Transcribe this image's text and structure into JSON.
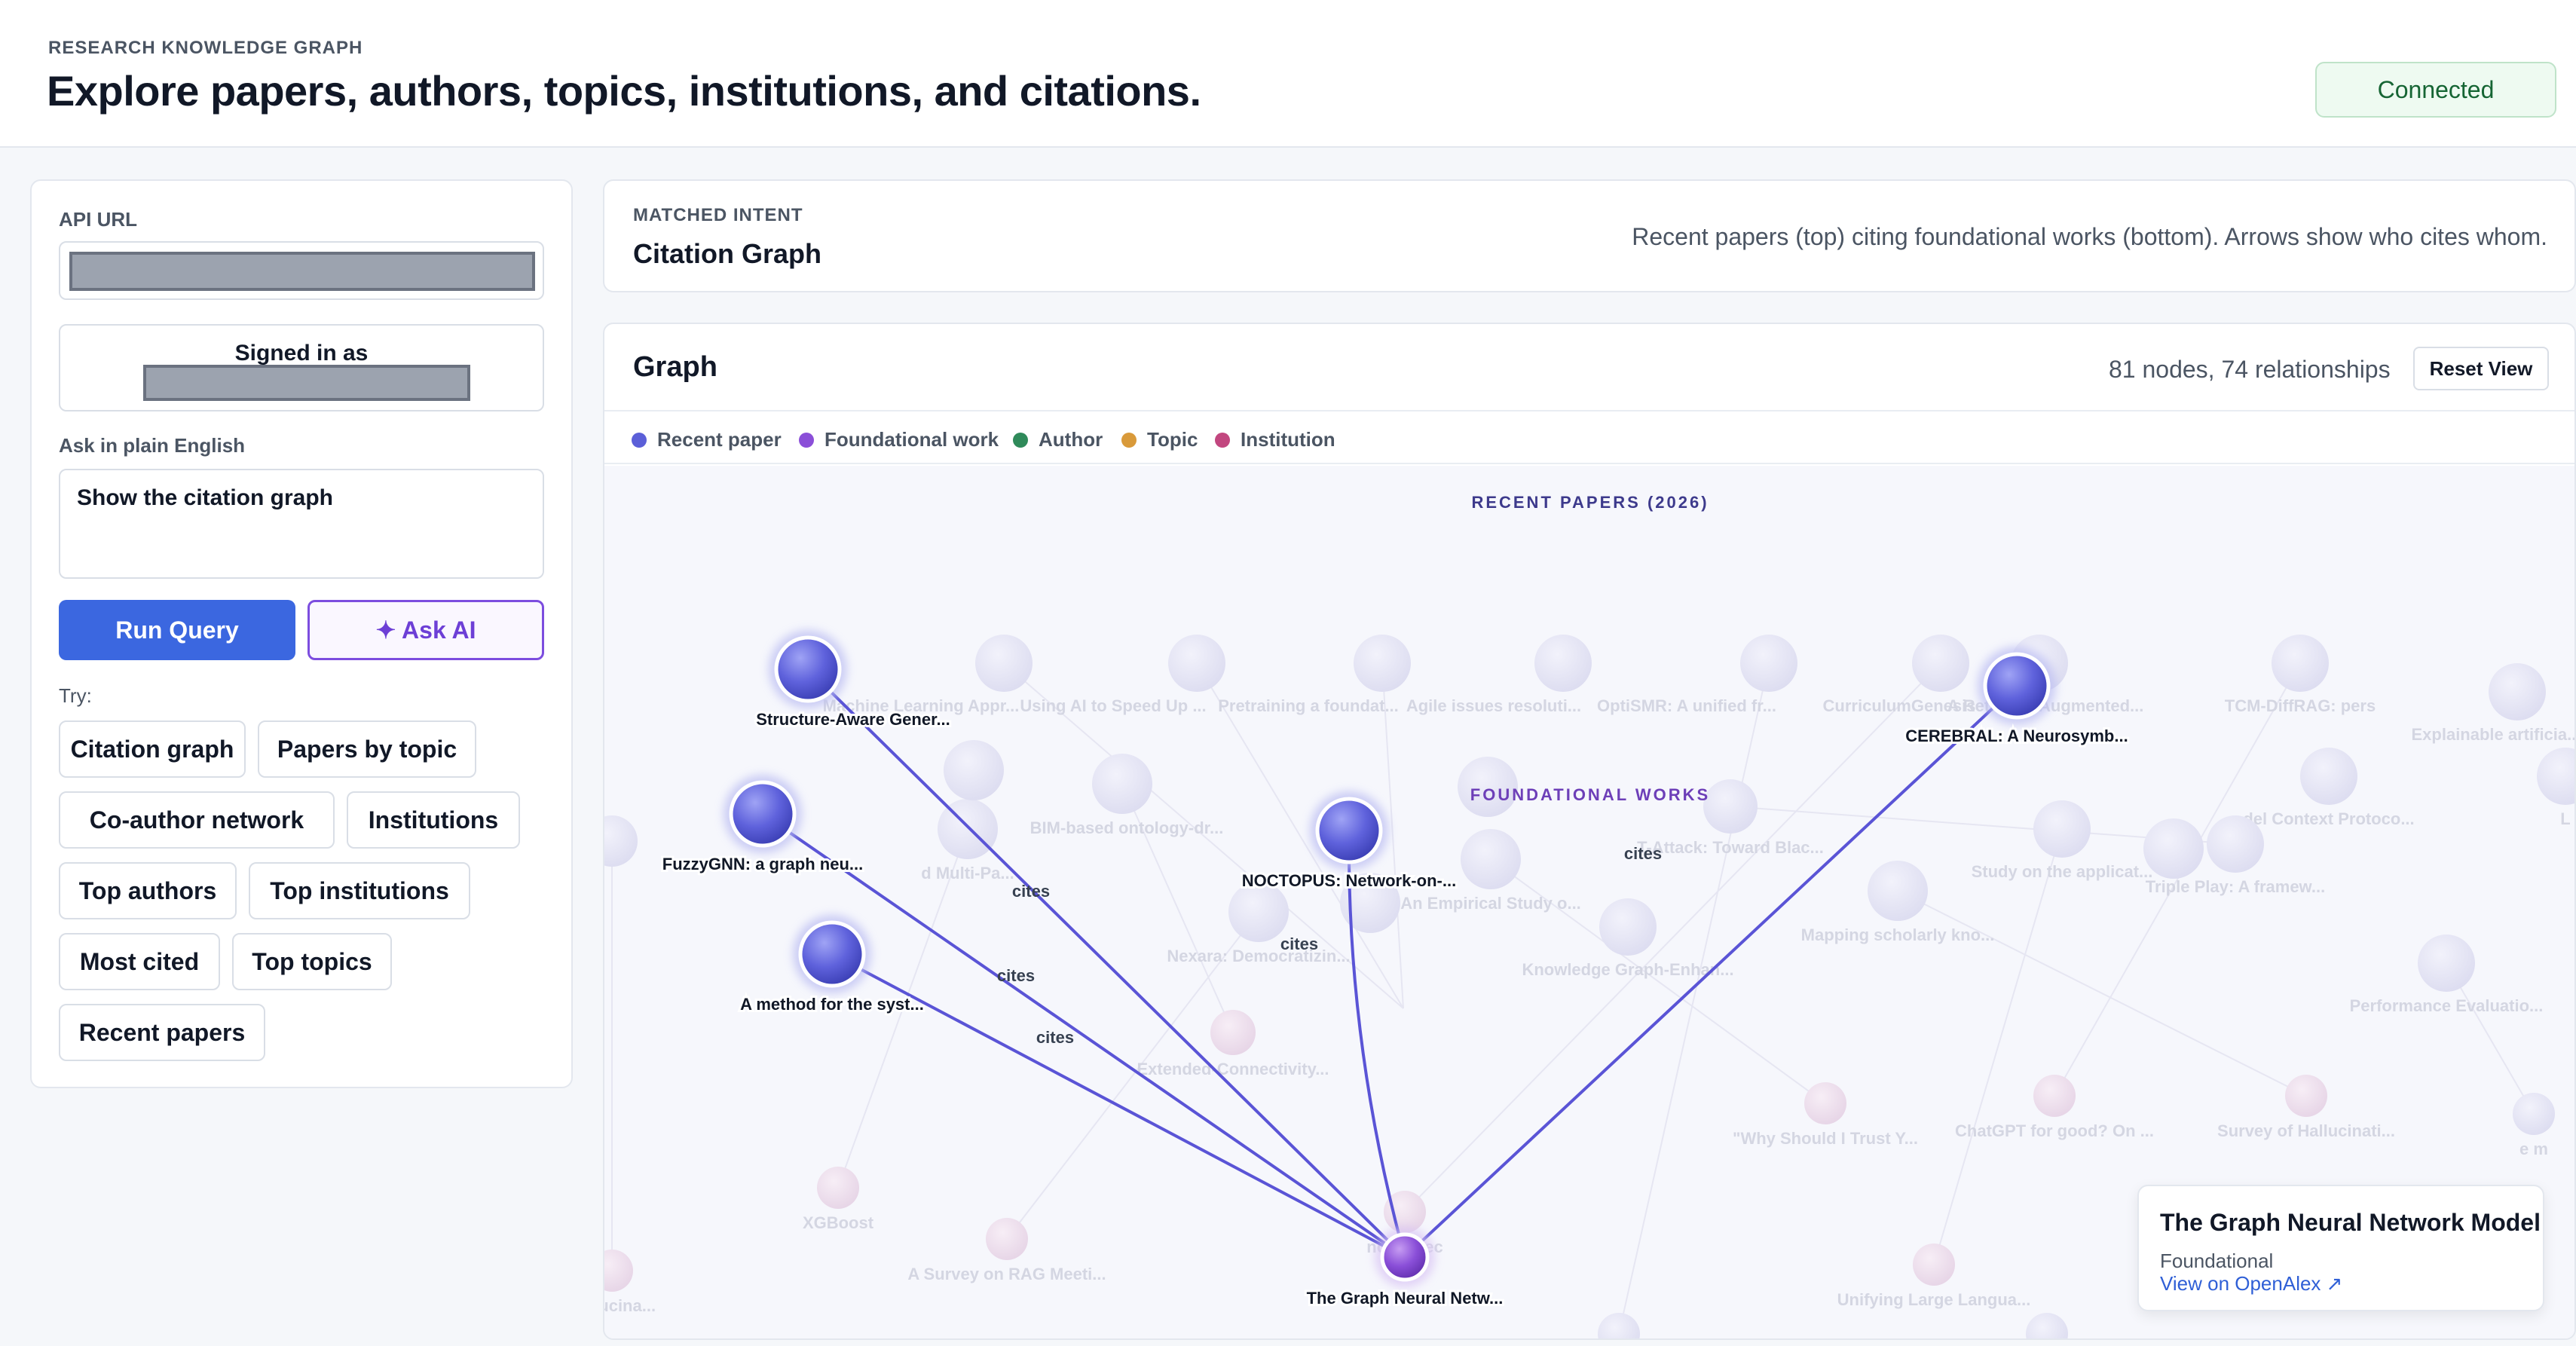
{
  "header": {
    "eyebrow": "RESEARCH KNOWLEDGE GRAPH",
    "title": "Explore papers, authors, topics, institutions, and citations.",
    "status": "Connected"
  },
  "sidebar": {
    "api_label": "API URL",
    "signed_in": "Signed in as",
    "query_label": "Ask in plain English",
    "query_value": "Show the citation graph",
    "run_label": "Run Query",
    "ai_label": "✦ Ask AI",
    "try_label": "Try:",
    "suggestions": [
      "Citation graph",
      "Papers by topic",
      "Co-author network",
      "Institutions",
      "Top authors",
      "Top institutions",
      "Most cited",
      "Top topics",
      "Recent papers"
    ]
  },
  "intent": {
    "label": "MATCHED INTENT",
    "name": "Citation Graph",
    "description": "Recent papers (top) citing foundational works (bottom). Arrows show who cites whom."
  },
  "graph": {
    "title": "Graph",
    "stats": "81 nodes, 74 relationships",
    "reset_label": "Reset View",
    "legend": [
      {
        "label": "Recent paper",
        "color": "#5b5fd8"
      },
      {
        "label": "Foundational work",
        "color": "#8b4fd8"
      },
      {
        "label": "Author",
        "color": "#2f8a5a"
      },
      {
        "label": "Topic",
        "color": "#d99a3a"
      },
      {
        "label": "Institution",
        "color": "#c2477f"
      }
    ],
    "band_recent": "RECENT PAPERS (2026)",
    "band_foundational": "FOUNDATIONAL WORKS",
    "edge_label": "cites",
    "active_nodes": [
      "Structure-Aware Gener...",
      "FuzzyGNN: a graph neu...",
      "A method for the syst...",
      "NOCTOPUS: Network-on-...",
      "CEREBRAL: A Neurosymb...",
      "The Graph Neural Netw..."
    ],
    "faded_nodes": [
      "Machine Learning Appr...",
      "Using AI to Speed Up ...",
      "Pretraining a foundat...",
      "Agile issues resoluti...",
      "OptiSMR: A unified fr...",
      "CurriculumGenesis",
      "A Retrieval-Augmented...",
      "TCM-DiffRAG: pers",
      "Explainable artificia...",
      "del Context Protoco...",
      "BIM-based ontology-dr...",
      "T-Attack: Toward Blac...",
      "d Multi-Pa...",
      "An Empirical Study o...",
      "Study on the applicat...",
      "Triple Play: A framew...",
      "Mapping scholarly kno...",
      "Nexara: Democratizin...",
      "Knowledge Graph-Enhan...",
      "Performance Evaluatio...",
      "Extended-Connectivity...",
      "\"Why Should I Trust Y...",
      "ChatGPT for good? On ...",
      "Survey of Hallucinati...",
      "XGBoost",
      "node2vec",
      "A Survey on RAG Meeti...",
      "Hallucina...",
      "Unifying Large Langua...",
      "e m",
      "L"
    ]
  },
  "detail": {
    "title": "The Graph Neural Network Model",
    "subtitle": "Foundational",
    "link": "View on OpenAlex ↗"
  }
}
